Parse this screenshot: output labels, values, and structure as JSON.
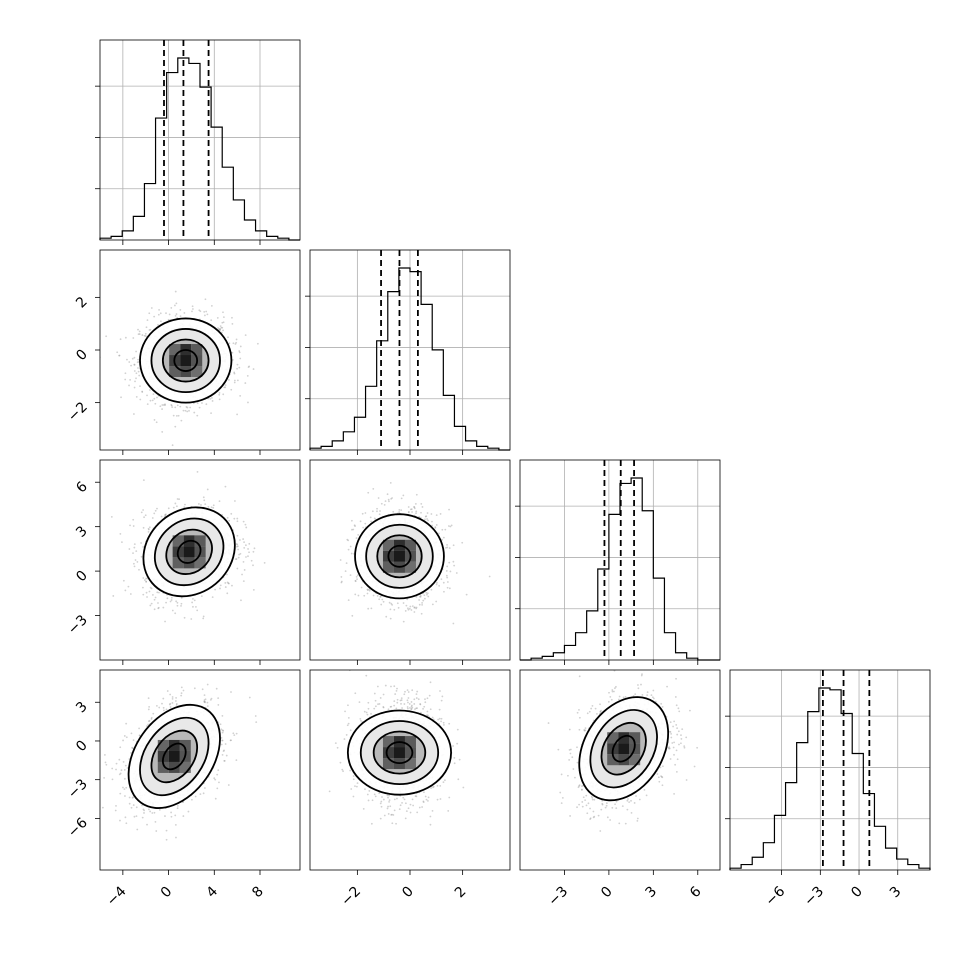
{
  "chart_data": {
    "type": "corner",
    "variables": [
      {
        "range": [
          -6,
          11.5
        ],
        "ticks": [
          -4,
          0,
          4,
          8
        ],
        "tick_labels": [
          "−4",
          "0",
          "4",
          "8"
        ],
        "quantiles": [
          -0.4,
          1.3,
          3.5
        ],
        "hist": [
          0.01,
          0.02,
          0.05,
          0.13,
          0.31,
          0.67,
          0.92,
          1.0,
          0.97,
          0.84,
          0.62,
          0.4,
          0.22,
          0.11,
          0.05,
          0.02,
          0.01,
          0.0
        ]
      },
      {
        "range": [
          -3.8,
          3.8
        ],
        "ticks": [
          -2,
          0,
          2
        ],
        "tick_labels": [
          "−2",
          "0",
          "2"
        ],
        "quantiles": [
          -1.1,
          -0.4,
          0.3
        ],
        "hist": [
          0.01,
          0.02,
          0.05,
          0.1,
          0.18,
          0.35,
          0.6,
          0.87,
          1.0,
          0.98,
          0.8,
          0.55,
          0.3,
          0.13,
          0.05,
          0.02,
          0.01,
          0.0
        ]
      },
      {
        "range": [
          -6,
          7.5
        ],
        "ticks": [
          -3,
          0,
          3,
          6
        ],
        "tick_labels": [
          "−3",
          "0",
          "3",
          "6"
        ],
        "quantiles": [
          -0.3,
          0.8,
          1.7
        ],
        "hist": [
          0.0,
          0.01,
          0.02,
          0.04,
          0.08,
          0.15,
          0.27,
          0.5,
          0.8,
          0.97,
          1.0,
          0.82,
          0.45,
          0.15,
          0.04,
          0.01,
          0.0,
          0.0
        ]
      },
      {
        "range": [
          -10,
          5.5
        ],
        "ticks": [
          -6,
          -3,
          0,
          3
        ],
        "tick_labels": [
          "−6",
          "−3",
          "0",
          "3"
        ],
        "quantiles": [
          -2.8,
          -1.2,
          0.8
        ],
        "hist": [
          0.01,
          0.03,
          0.07,
          0.15,
          0.3,
          0.48,
          0.7,
          0.87,
          1.0,
          0.99,
          0.86,
          0.64,
          0.42,
          0.24,
          0.12,
          0.06,
          0.03,
          0.01
        ]
      }
    ],
    "means": [
      1.3,
      -0.4,
      0.9,
      -1.0
    ],
    "stds": [
      2.0,
      0.8,
      1.5,
      2.0
    ],
    "correlations": [
      [
        1,
        0,
        0.15,
        0.35
      ],
      [
        0,
        1,
        0,
        0
      ],
      [
        0.15,
        0,
        1,
        0.3
      ],
      [
        0.35,
        0,
        0.3,
        1
      ]
    ],
    "density_modes": {
      "0-1": [
        1.5,
        -0.4
      ],
      "0-2": [
        1.8,
        1.3
      ],
      "1-2": [
        -0.4,
        1.0
      ],
      "0-3": [
        0.5,
        -1.2
      ],
      "1-3": [
        -0.4,
        -0.9
      ],
      "2-3": [
        1.0,
        -0.6
      ]
    },
    "contour_levels_sigma": [
      0.5,
      1.0,
      1.5,
      2.0
    ],
    "grid": true,
    "quantile_lines": "dashed"
  },
  "colors": {
    "contour": "#000000",
    "points": "#9a9a9a",
    "grid": "#b0b0b0"
  }
}
